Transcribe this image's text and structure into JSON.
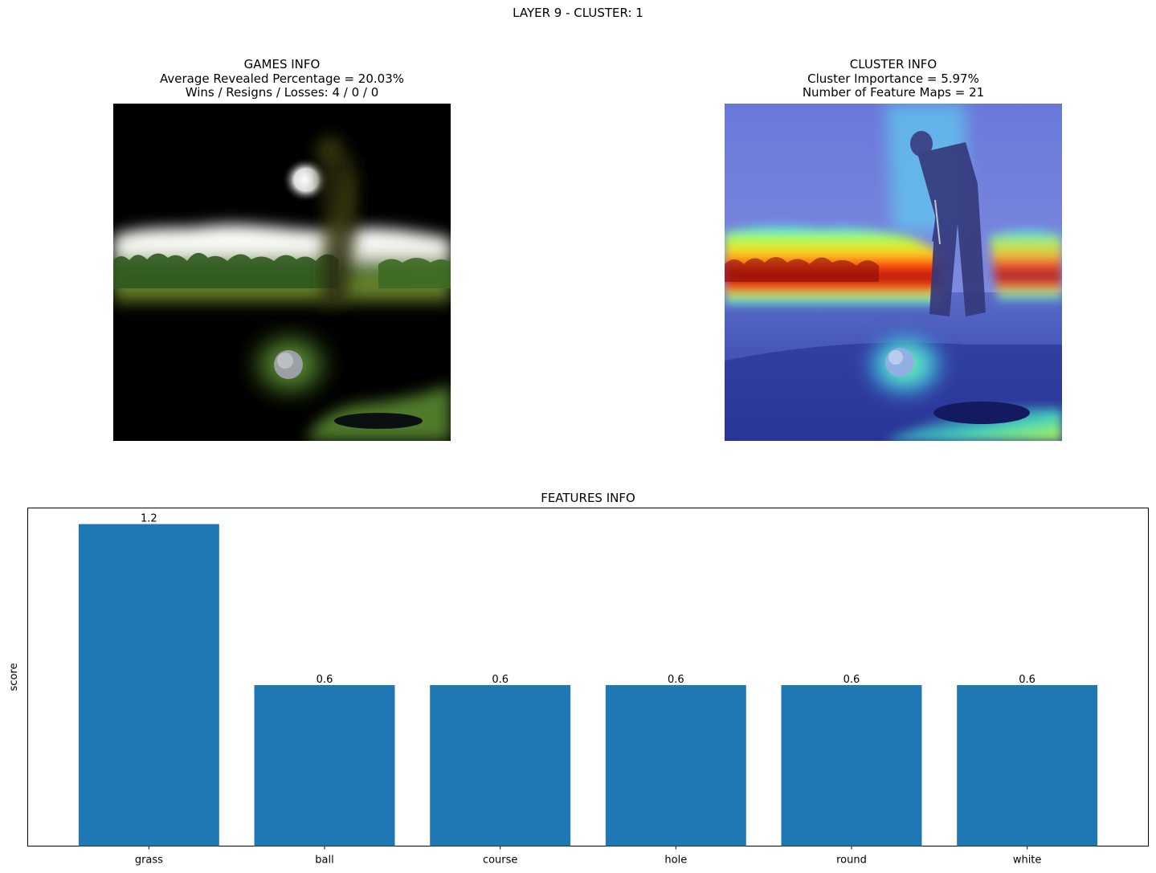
{
  "suptitle": "LAYER 9 - CLUSTER: 1",
  "games_info": {
    "title": "GAMES INFO",
    "line1": "Average Revealed Percentage = 20.03%",
    "line2": "Wins / Resigns / Losses: 4 / 0 / 0"
  },
  "cluster_info": {
    "title": "CLUSTER INFO",
    "line1": "Cluster Importance = 5.97%",
    "line2": "Number of Feature Maps = 21"
  },
  "colors": {
    "bar": "#1f77b4",
    "sky": "#7a8fd8",
    "heat_red": "#b01010",
    "heat_cyan": "#40e0ff",
    "grass": "#6e9a3a"
  },
  "chart_data": {
    "type": "bar",
    "title": "FEATURES INFO",
    "xlabel": "",
    "ylabel": "score",
    "categories": [
      "grass",
      "ball",
      "course",
      "hole",
      "round",
      "white"
    ],
    "values": [
      1.2,
      0.6,
      0.6,
      0.6,
      0.6,
      0.6
    ],
    "data_labels": [
      "1.2",
      "0.6",
      "0.6",
      "0.6",
      "0.6",
      "0.6"
    ],
    "ylim": [
      0,
      1.26
    ],
    "yticks_visible": false,
    "grid": false,
    "legend": "none"
  }
}
